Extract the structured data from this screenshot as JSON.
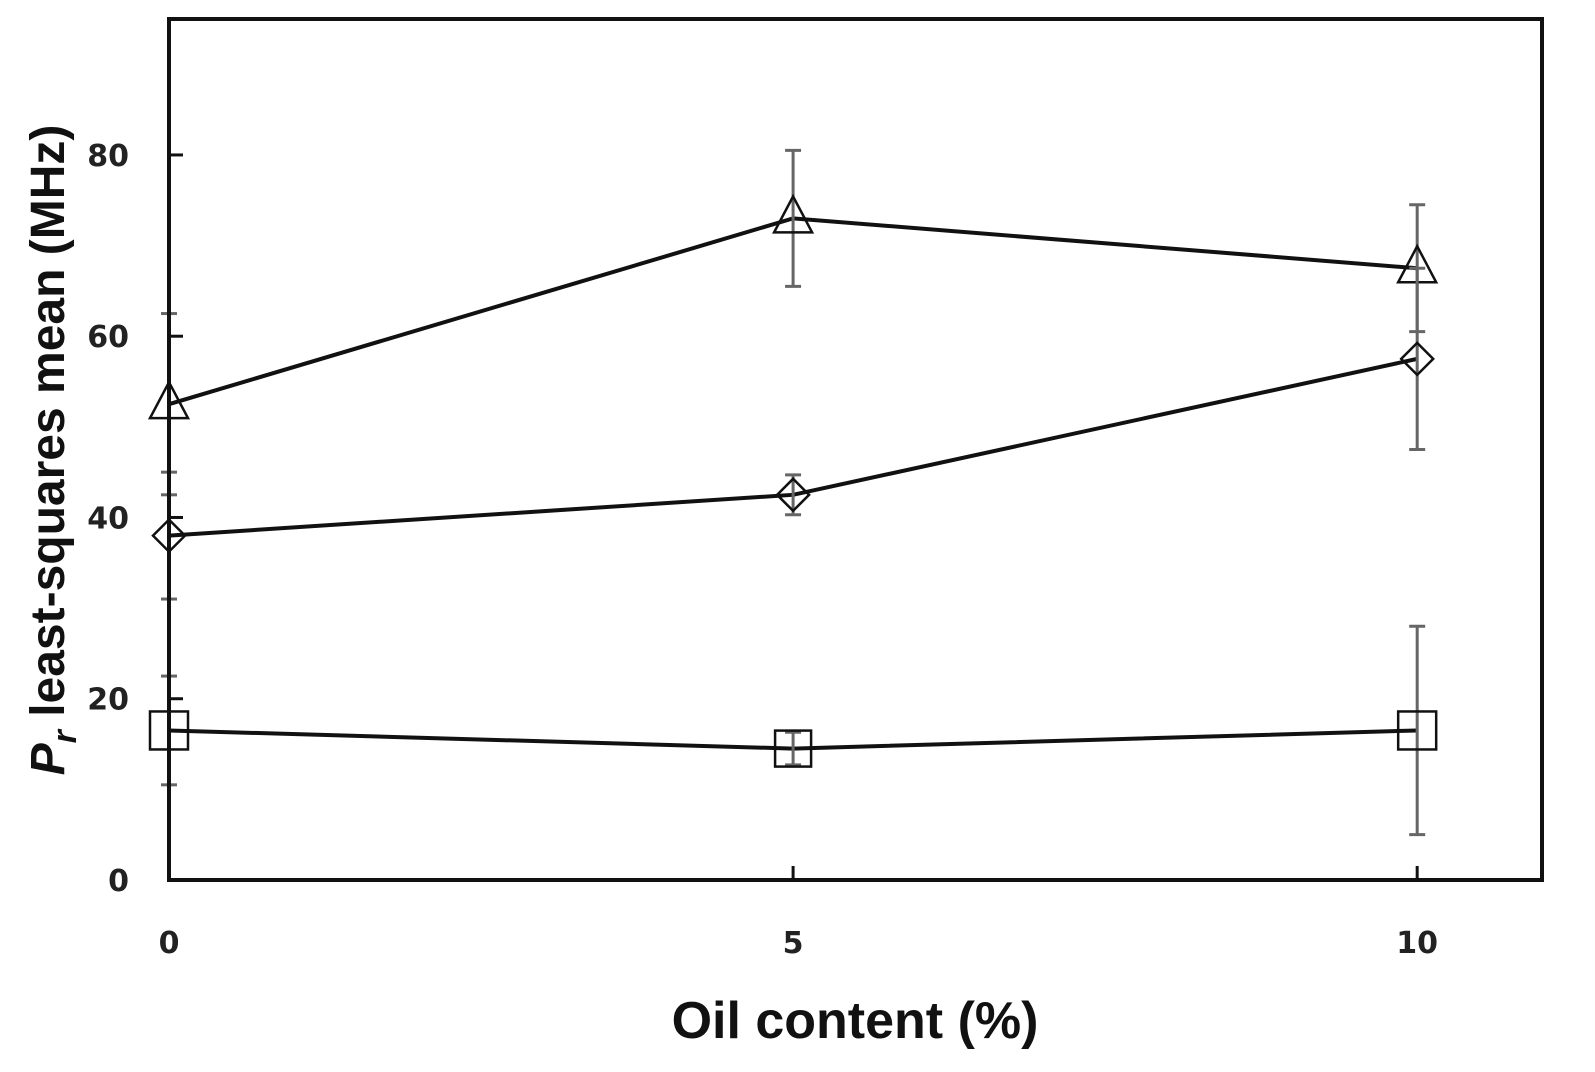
{
  "chart_data": {
    "type": "line",
    "xlabel": "Oil content (%)",
    "ylabel": {
      "symbol": "P",
      "subscript": "r",
      "text": " least-squares mean (MHz)"
    },
    "x": [
      0,
      5,
      10
    ],
    "xlim": [
      0,
      11
    ],
    "ylim": [
      0,
      95
    ],
    "xticks": [
      0,
      5,
      10
    ],
    "yticks": [
      0,
      20,
      40,
      60,
      80
    ],
    "grid": false,
    "legend": "none",
    "series": [
      {
        "marker": "triangle",
        "values": [
          52.5,
          73,
          67.5
        ],
        "errors": [
          10,
          7.5,
          7
        ]
      },
      {
        "marker": "diamond",
        "values": [
          38,
          42.5,
          57.5
        ],
        "errors": [
          7,
          2.2,
          10
        ]
      },
      {
        "marker": "square",
        "values": [
          16.5,
          14.5,
          16.5
        ],
        "errors": [
          6,
          1.8,
          11.5
        ]
      }
    ]
  }
}
